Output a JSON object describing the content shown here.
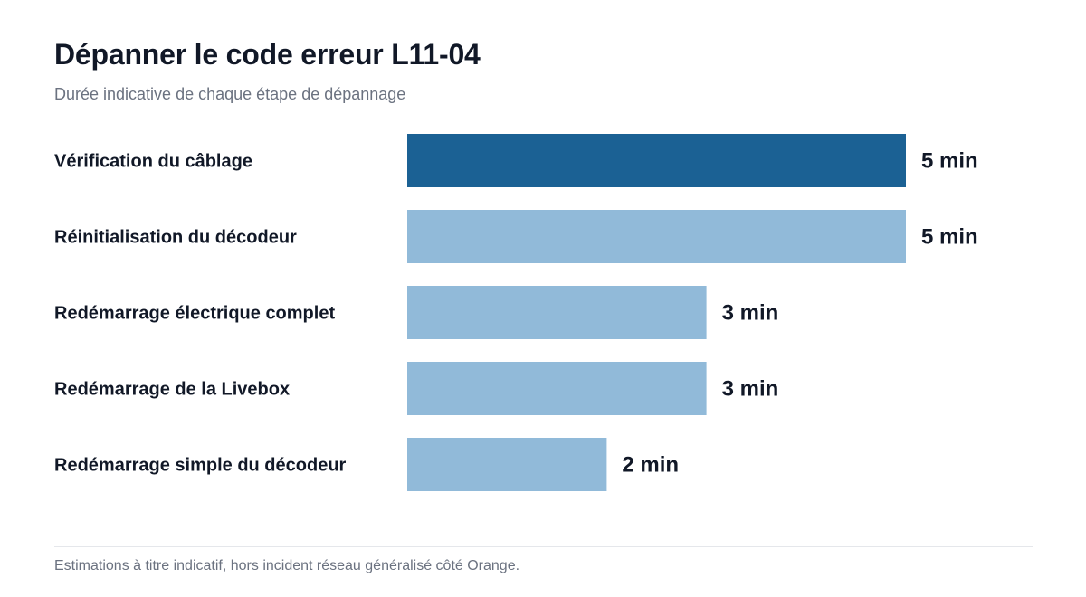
{
  "header": {
    "title": "Dépanner le code erreur L11-04",
    "subtitle": "Durée indicative de chaque étape de dépannage"
  },
  "footer": {
    "note": "Estimations à titre indicatif, hors incident réseau généralisé côté Orange."
  },
  "colors": {
    "highlight": "#1b6194",
    "bar": "#91bad9"
  },
  "chart_data": {
    "type": "bar",
    "orientation": "horizontal",
    "categories": [
      "Vérification du câblage",
      "Réinitialisation du décodeur",
      "Redémarrage électrique complet",
      "Redémarrage de la Livebox",
      "Redémarrage simple du décodeur"
    ],
    "values": [
      5,
      5,
      3,
      3,
      2
    ],
    "value_labels": [
      "5 min",
      "5 min",
      "3 min",
      "3 min",
      "2 min"
    ],
    "unit": "min",
    "highlight_index": 0,
    "xlim": [
      0,
      5
    ],
    "grid": false,
    "legend": "none"
  }
}
